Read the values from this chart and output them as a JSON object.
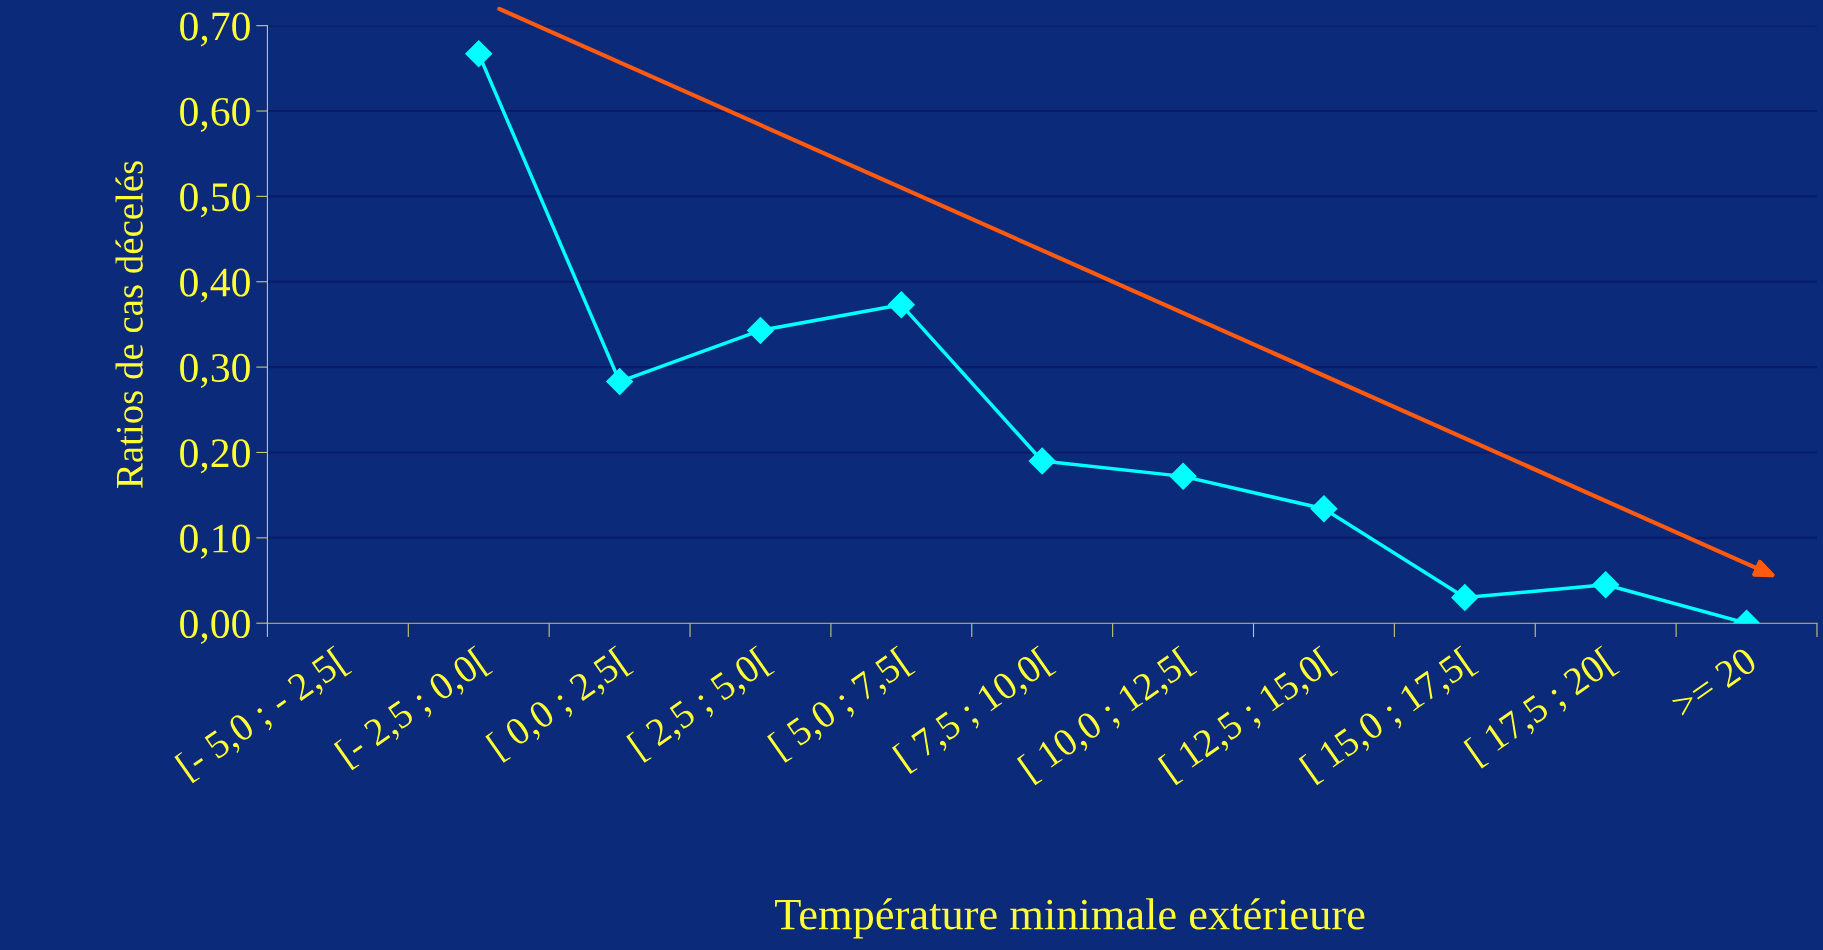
{
  "chart_data": {
    "type": "line",
    "xlabel": "Température minimale extérieure",
    "ylabel": "Ratios de cas décelés",
    "categories": [
      "[- 5,0 ; - 2,5[",
      "[- 2,5 ; 0,0[",
      "[ 0,0 ; 2,5[",
      "[ 2,5 ; 5,0[",
      "[ 5,0 ; 7,5[",
      "[ 7,5 ; 10,0[",
      "[ 10,0 ; 12,5[",
      "[ 12,5 ; 15,0[",
      "[ 15,0 ; 17,5[",
      "[ 17,5 ; 20[",
      ">= 20"
    ],
    "series": [
      {
        "color": "#00ffff",
        "values": [
          null,
          0.667,
          0.283,
          0.343,
          0.373,
          0.19,
          0.172,
          0.134,
          0.03,
          0.045,
          0.0
        ]
      }
    ],
    "ylim": [
      0,
      0.7
    ],
    "yticks": [
      {
        "value": 0,
        "label": "0,00"
      },
      {
        "value": 0.1,
        "label": "0,10"
      },
      {
        "value": 0.2,
        "label": "0,20"
      },
      {
        "value": 0.3,
        "label": "0,30"
      },
      {
        "value": 0.4,
        "label": "0,40"
      },
      {
        "value": 0.5,
        "label": "0,50"
      },
      {
        "value": 0.6,
        "label": "0,60"
      },
      {
        "value": 0.7,
        "label": "0,70"
      }
    ],
    "grid": "y",
    "marker": "diamond",
    "line_style": "solid",
    "legend": false
  }
}
